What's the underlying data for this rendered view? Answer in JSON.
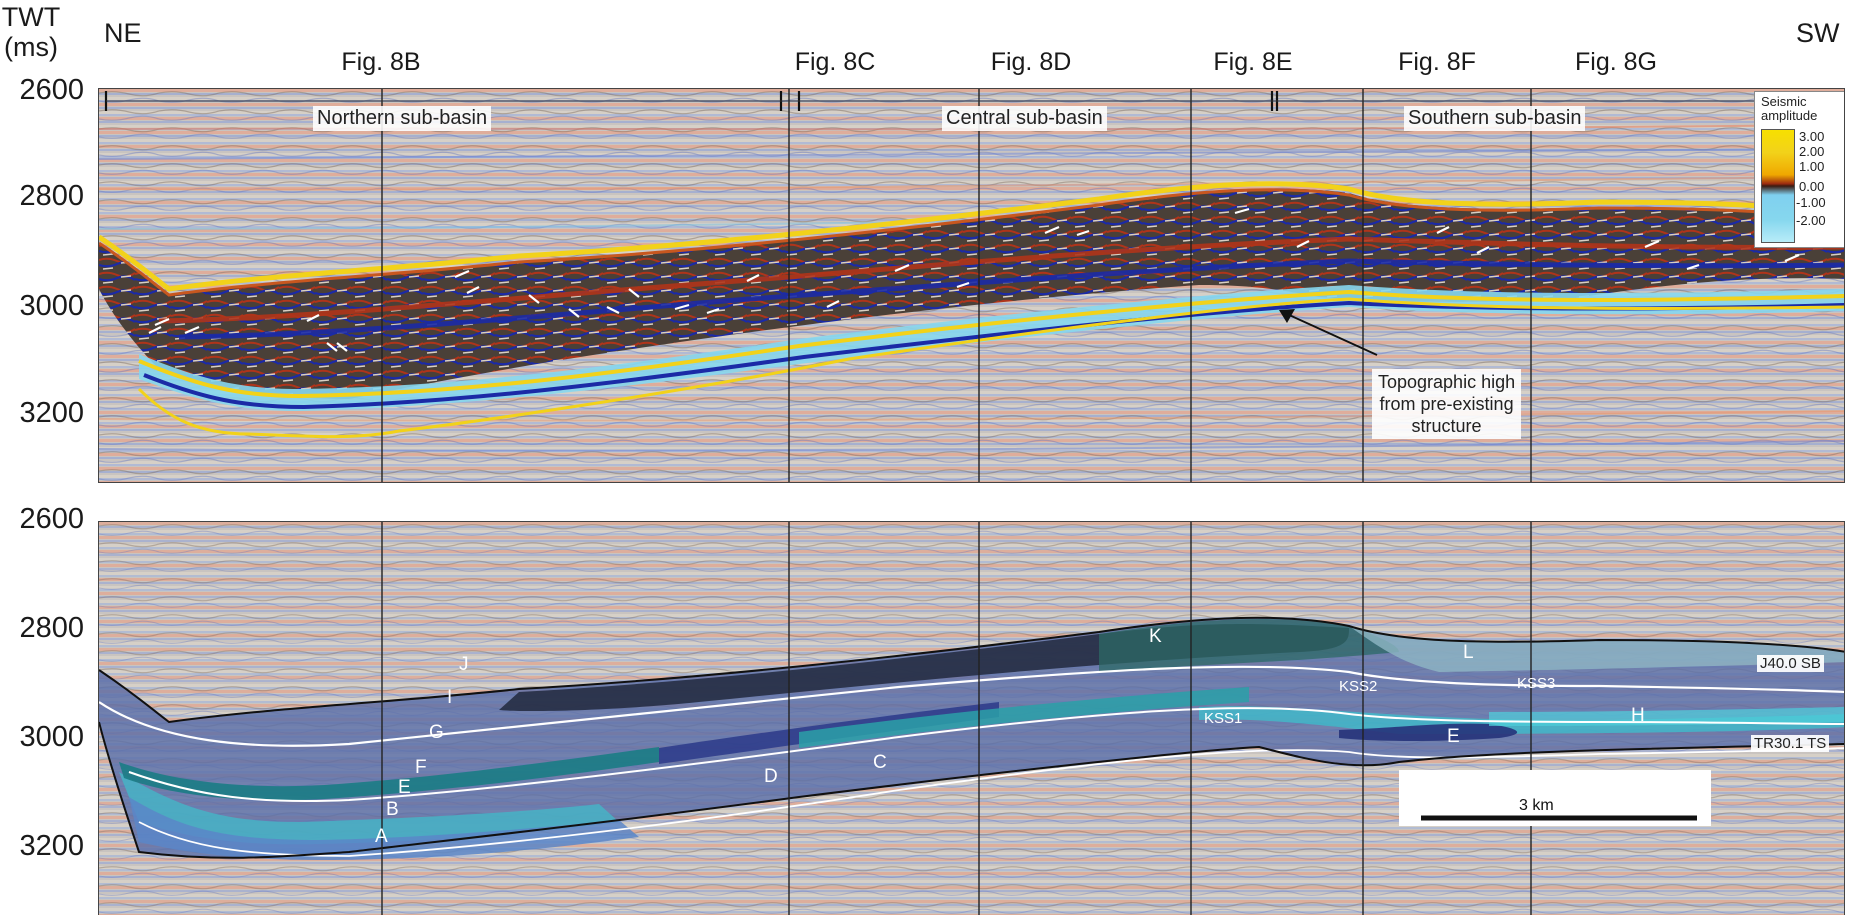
{
  "axis": {
    "twt_label_line1": "TWT",
    "twt_label_line2": "(ms)",
    "top_ticks": [
      "2600",
      "2800",
      "3000",
      "3200"
    ],
    "bottom_ticks": [
      "2600",
      "2800",
      "3000",
      "3200"
    ]
  },
  "direction": {
    "left": "NE",
    "right": "SW"
  },
  "figure_refs": [
    "Fig. 8B",
    "Fig. 8C",
    "Fig. 8D",
    "Fig. 8E",
    "Fig. 8F",
    "Fig. 8G"
  ],
  "top_panel": {
    "sub_basins": [
      "Northern sub-basin",
      "Central sub-basin",
      "Southern sub-basin"
    ],
    "annotation": [
      "Topographic high",
      "from pre-existing",
      "structure"
    ],
    "legend": {
      "title_line1": "Seismic",
      "title_line2": "amplitude",
      "values": [
        "3.00",
        "2.00",
        "1.00",
        "0.00",
        "-1.00",
        "-2.00"
      ]
    }
  },
  "bottom_panel": {
    "units": [
      "A",
      "B",
      "C",
      "D",
      "E",
      "E",
      "F",
      "G",
      "H",
      "I",
      "J",
      "K",
      "L"
    ],
    "sequences": [
      "KSS1",
      "KSS2",
      "KSS3"
    ],
    "horizons": [
      "J40.0 SB",
      "TR30.1 TS"
    ],
    "scale_bar": "3 km"
  },
  "colors": {
    "seismic_bg": "#bcb8b4",
    "positive_amp": "#f2d21a",
    "negative_amp": "#86d7ee",
    "trough": "#1b2aa6",
    "peak": "#b0341a"
  }
}
